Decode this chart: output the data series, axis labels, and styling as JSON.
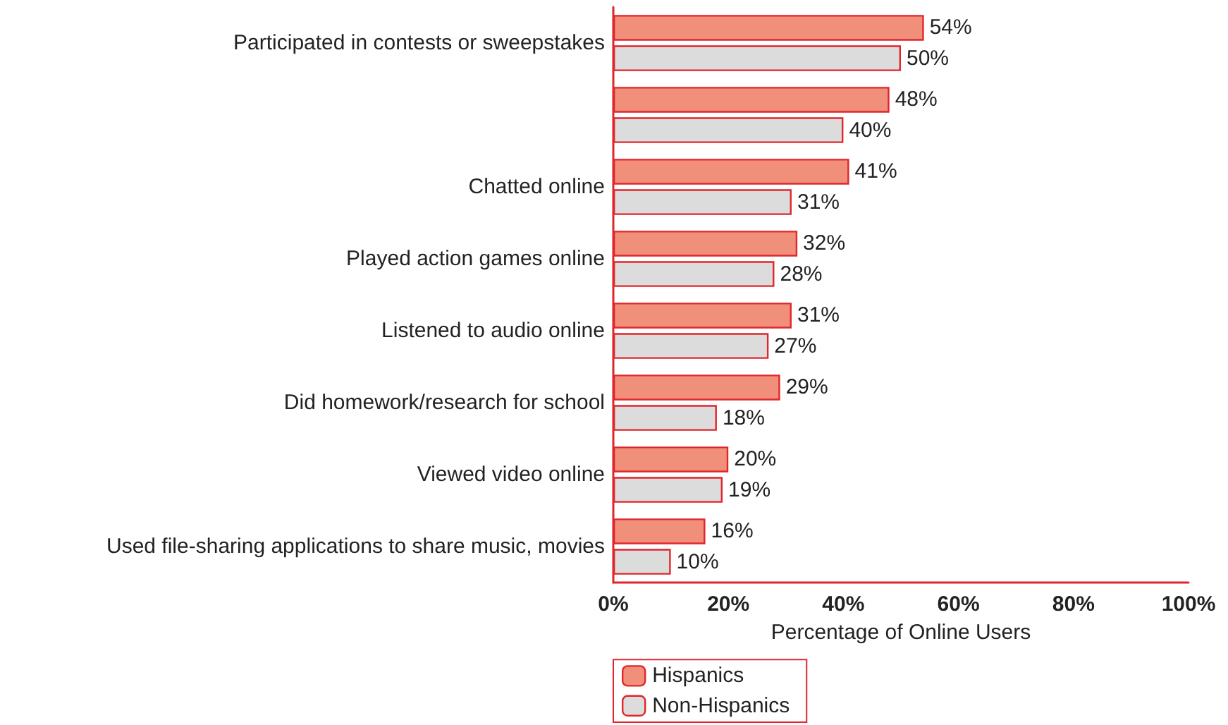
{
  "chart_data": {
    "type": "bar",
    "orientation": "horizontal",
    "xlabel": "Percentage of Online Users",
    "categories": [
      "Participated in contests or sweepstakes",
      null,
      "Chatted online",
      "Played action games online",
      "Listened to audio online",
      "Did homework/research for school",
      "Viewed video online",
      "Used file-sharing applications to share music, movies"
    ],
    "series": [
      {
        "name": "Hispanics",
        "color": "#f0907a",
        "values": [
          54,
          48,
          41,
          32,
          31,
          29,
          20,
          16
        ],
        "value_labels": [
          "54%",
          "48%",
          "41%",
          "32%",
          "31%",
          "29%",
          "20%",
          "16%"
        ]
      },
      {
        "name": "Non-Hispanics",
        "color": "#dcdcdc",
        "values": [
          50,
          40,
          31,
          28,
          27,
          18,
          19,
          10
        ],
        "value_labels": [
          "50%",
          "40%",
          "31%",
          "28%",
          "27%",
          "18%",
          "19%",
          "10%"
        ]
      }
    ],
    "xlim": [
      0,
      100
    ],
    "xticks": [
      {
        "value": 0,
        "label": "0%"
      },
      {
        "value": 20,
        "label": "20%"
      },
      {
        "value": 40,
        "label": "40%"
      },
      {
        "value": 60,
        "label": "60%"
      },
      {
        "value": 80,
        "label": "80%"
      },
      {
        "value": 100,
        "label": "100%"
      }
    ],
    "grid": false,
    "legend": "bottom"
  }
}
